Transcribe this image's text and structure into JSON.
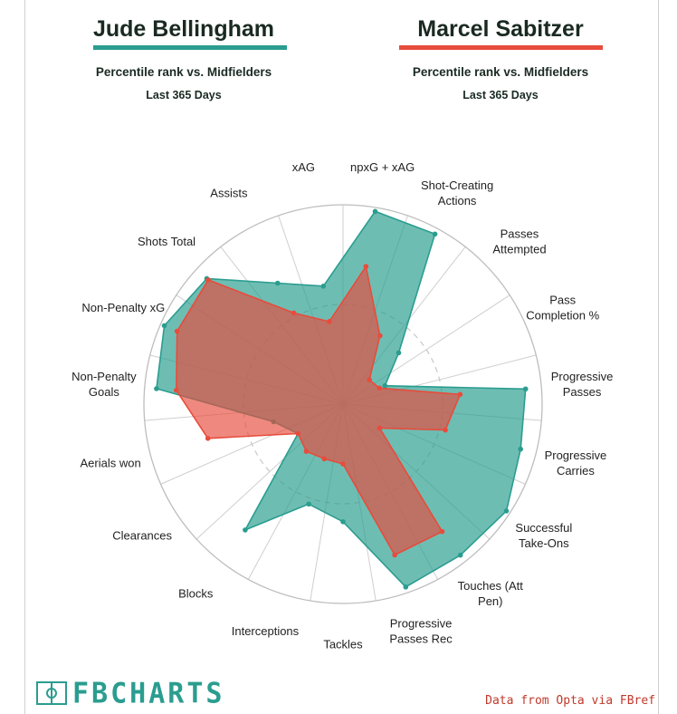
{
  "players": [
    {
      "name": "Jude Bellingham",
      "subtitle": "Percentile rank vs. Midfielders",
      "period": "Last 365 Days",
      "color": "#2a9d8f"
    },
    {
      "name": "Marcel Sabitzer",
      "subtitle": "Percentile rank vs. Midfielders",
      "period": "Last 365 Days",
      "color": "#e74c3c"
    }
  ],
  "chart_data": {
    "type": "radar",
    "title": "",
    "scale": [
      0,
      100
    ],
    "grid": true,
    "categories": [
      "npxG + xAG",
      "Shot-Creating\nActions",
      "Passes\nAttempted",
      "Pass\nCompletion %",
      "Progressive\nPasses",
      "Progressive\nCarries",
      "Successful\nTake-Ons",
      "Touches (Att\nPen)",
      "Progressive\nPasses Rec",
      "Tackles",
      "Interceptions",
      "Blocks",
      "Clearances",
      "Aerials won",
      "Non-Penalty\nGoals",
      "Non-Penalty xG",
      "Shots Total",
      "Assists",
      "xAG"
    ],
    "series": [
      {
        "name": "Jude Bellingham",
        "color": "#2a9d8f",
        "values": [
          98,
          97,
          38,
          23,
          92,
          92,
          98,
          96,
          97,
          59,
          53,
          80,
          27,
          36,
          94,
          98,
          93,
          69,
          60
        ]
      },
      {
        "name": "Marcel Sabitzer",
        "color": "#e74c3c",
        "values": [
          70,
          39,
          18,
          20,
          59,
          53,
          22,
          81,
          80,
          30,
          29,
          30,
          27,
          70,
          84,
          91,
          92,
          52,
          42
        ]
      }
    ]
  },
  "logo_text": "FBCHARTS",
  "source_text": "Data from Opta via FBref"
}
